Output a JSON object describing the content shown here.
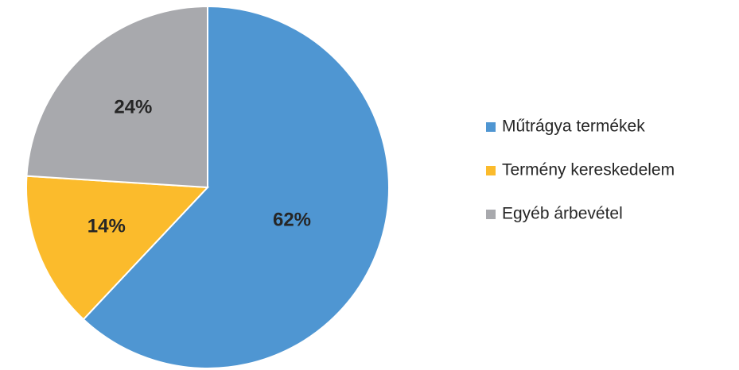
{
  "chart_data": {
    "type": "pie",
    "categories": [
      "Műtrágya termékek",
      "Termény kereskedelem",
      "Egyéb árbevétel"
    ],
    "values": [
      62,
      14,
      24
    ],
    "value_labels": [
      "62%",
      "14%",
      "24%"
    ],
    "colors": [
      "#4f96d2",
      "#fbbb2c",
      "#a8a9ad"
    ],
    "legend": "right"
  }
}
